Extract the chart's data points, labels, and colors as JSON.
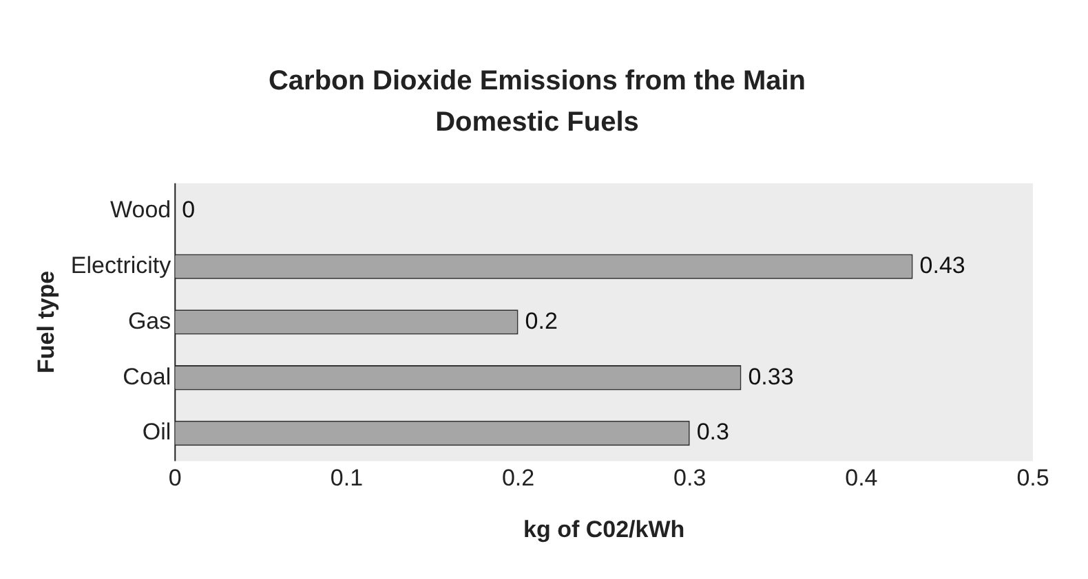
{
  "chart_data": {
    "type": "bar",
    "orientation": "horizontal",
    "title": "Carbon Dioxide Emissions from the Main Domestic Fuels",
    "xlabel": "kg of C02/kWh",
    "ylabel": "Fuel type",
    "categories": [
      "Wood",
      "Electricity",
      "Gas",
      "Coal",
      "Oil"
    ],
    "values": [
      0,
      0.43,
      0.2,
      0.33,
      0.3
    ],
    "color": "#a6a6a6",
    "xlim": [
      0,
      0.5
    ],
    "xticks": [
      0,
      0.1,
      0.2,
      0.3,
      0.4,
      0.5
    ],
    "grid": false,
    "legend": false,
    "data_labels": true
  }
}
